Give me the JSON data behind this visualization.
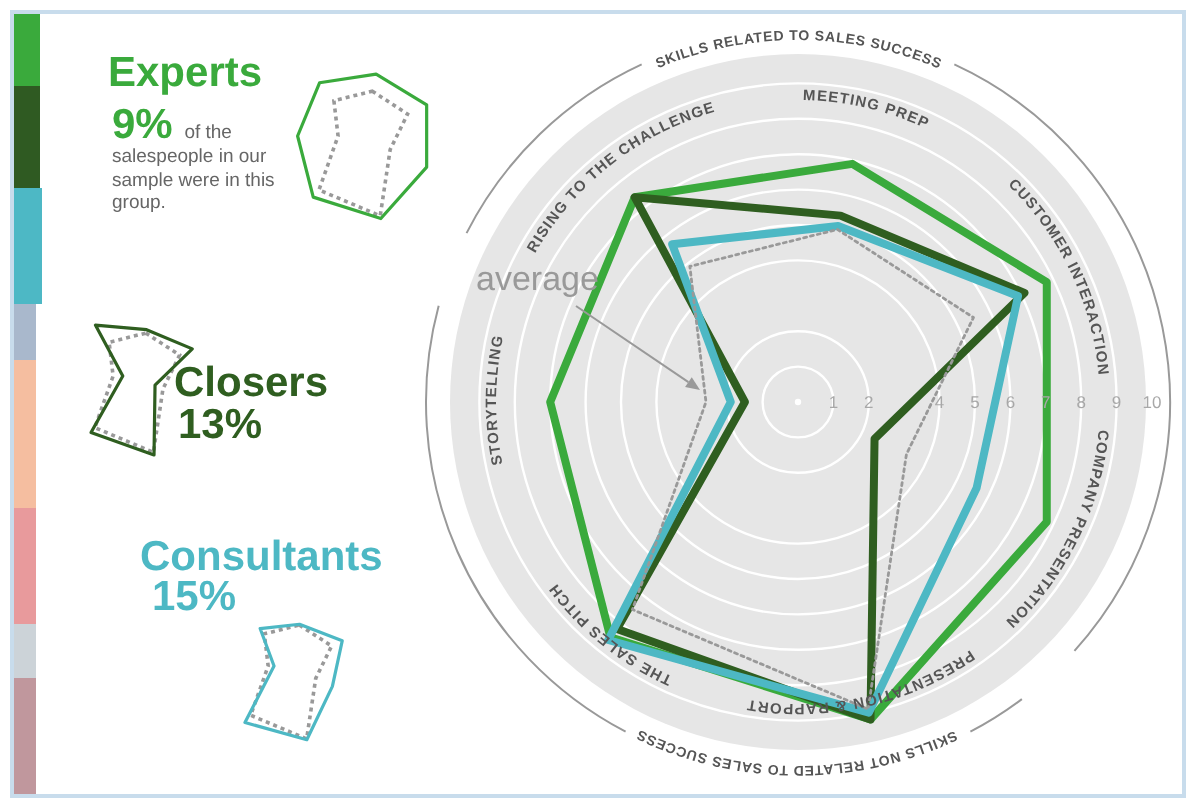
{
  "chart_data": {
    "type": "radar",
    "categories": [
      "MEETING PREP",
      "CUSTOMER INTERACTION",
      "COMPANY PRESENTATION",
      "PRESENTATION & RAPPORT",
      "THE SALES PITCH",
      "STORYTELLING",
      "RISING TO THE CHALLENGE"
    ],
    "series": [
      {
        "name": "Experts",
        "color": "#3aaa3c",
        "values": [
          6.9,
          7.8,
          7.8,
          9.2,
          8.5,
          7.0,
          7.4
        ]
      },
      {
        "name": "Closers",
        "color": "#2f5e20",
        "values": [
          5.4,
          7.1,
          2.4,
          9.2,
          8.2,
          1.5,
          7.4
        ]
      },
      {
        "name": "Consultants",
        "color": "#4db8c4",
        "values": [
          5.1,
          6.9,
          5.6,
          9.0,
          8.6,
          1.9,
          5.7
        ]
      },
      {
        "name": "average",
        "color": "#999999",
        "line_style": "dotted",
        "values": [
          5.0,
          5.5,
          3.4,
          8.9,
          7.5,
          2.6,
          4.9
        ]
      }
    ],
    "ylim": [
      0,
      10
    ],
    "yticks": [
      1,
      2,
      4,
      5,
      6,
      7,
      8,
      9,
      10
    ],
    "grid": true,
    "legend": "left",
    "line_style": "solid",
    "annotations": [
      "9% of the salespeople in our sample were in this group.",
      "13%",
      "15%",
      "SKILLS RELATED TO SALES SUCCESS",
      "SKILLS NOT RELATED TO SALES SUCCESS"
    ]
  }
}
